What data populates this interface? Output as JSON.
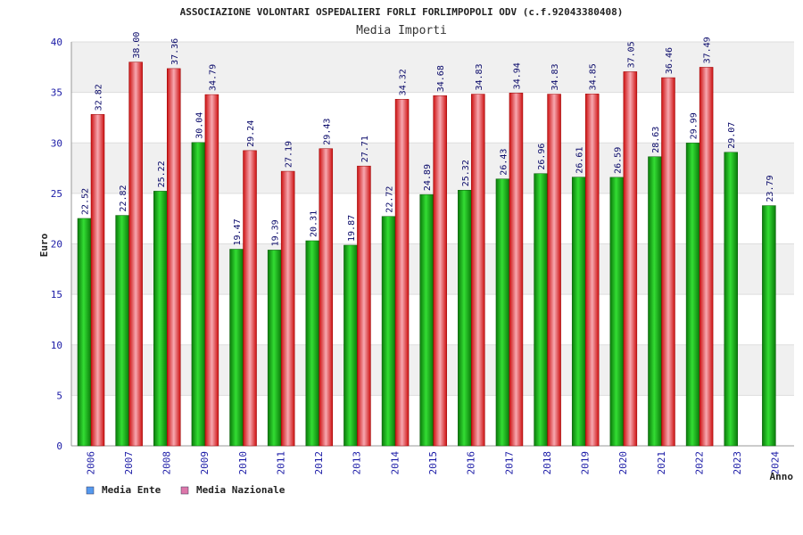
{
  "chart_data": {
    "type": "bar",
    "title": "ASSOCIAZIONE VOLONTARI OSPEDALIERI FORLI FORLIMPOPOLI ODV (c.f.92043380408)",
    "subtitle": "Media Importi",
    "ylabel": "Euro",
    "xlabel": "Anno",
    "ylim": [
      0,
      40
    ],
    "yticks": [
      "0",
      "5",
      "10",
      "15",
      "20",
      "25",
      "30",
      "35",
      "40"
    ],
    "categories": [
      "2006",
      "2007",
      "2008",
      "2009",
      "2010",
      "2011",
      "2012",
      "2013",
      "2014",
      "2015",
      "2016",
      "2017",
      "2018",
      "2019",
      "2020",
      "2021",
      "2022",
      "2023",
      "2024"
    ],
    "series": [
      {
        "name": "Media Ente",
        "color": "#11aa11",
        "values": [
          22.52,
          22.82,
          25.22,
          30.04,
          19.47,
          19.39,
          20.31,
          19.87,
          22.72,
          24.89,
          25.32,
          26.43,
          26.96,
          26.61,
          26.59,
          28.63,
          29.99,
          29.07,
          23.79
        ],
        "labels": [
          "22.52",
          "22.82",
          "25.22",
          "30.04",
          "19.47",
          "19.39",
          "20.31",
          "19.87",
          "22.72",
          "24.89",
          "25.32",
          "26.43",
          "26.96",
          "26.61",
          "26.59",
          "28.63",
          "29.99",
          "29.07",
          "23.79"
        ]
      },
      {
        "name": "Media Nazionale",
        "color": "#dd2222",
        "values": [
          32.82,
          38.0,
          37.36,
          34.79,
          29.24,
          27.19,
          29.43,
          27.71,
          34.32,
          34.68,
          34.83,
          34.94,
          34.83,
          34.85,
          37.05,
          36.46,
          37.49,
          null,
          null
        ],
        "labels": [
          "32.82",
          "38.00",
          "37.36",
          "34.79",
          "29.24",
          "27.19",
          "29.43",
          "27.71",
          "34.32",
          "34.68",
          "34.83",
          "34.94",
          "34.83",
          "34.85",
          "37.05",
          "36.46",
          "37.49",
          "",
          ""
        ]
      }
    ],
    "legend": {
      "placement": "bottom-left",
      "items": [
        {
          "label": "Media Ente",
          "color": "#5599ee"
        },
        {
          "label": "Media Nazionale",
          "color": "#dd77aa"
        }
      ]
    },
    "grid": true
  }
}
